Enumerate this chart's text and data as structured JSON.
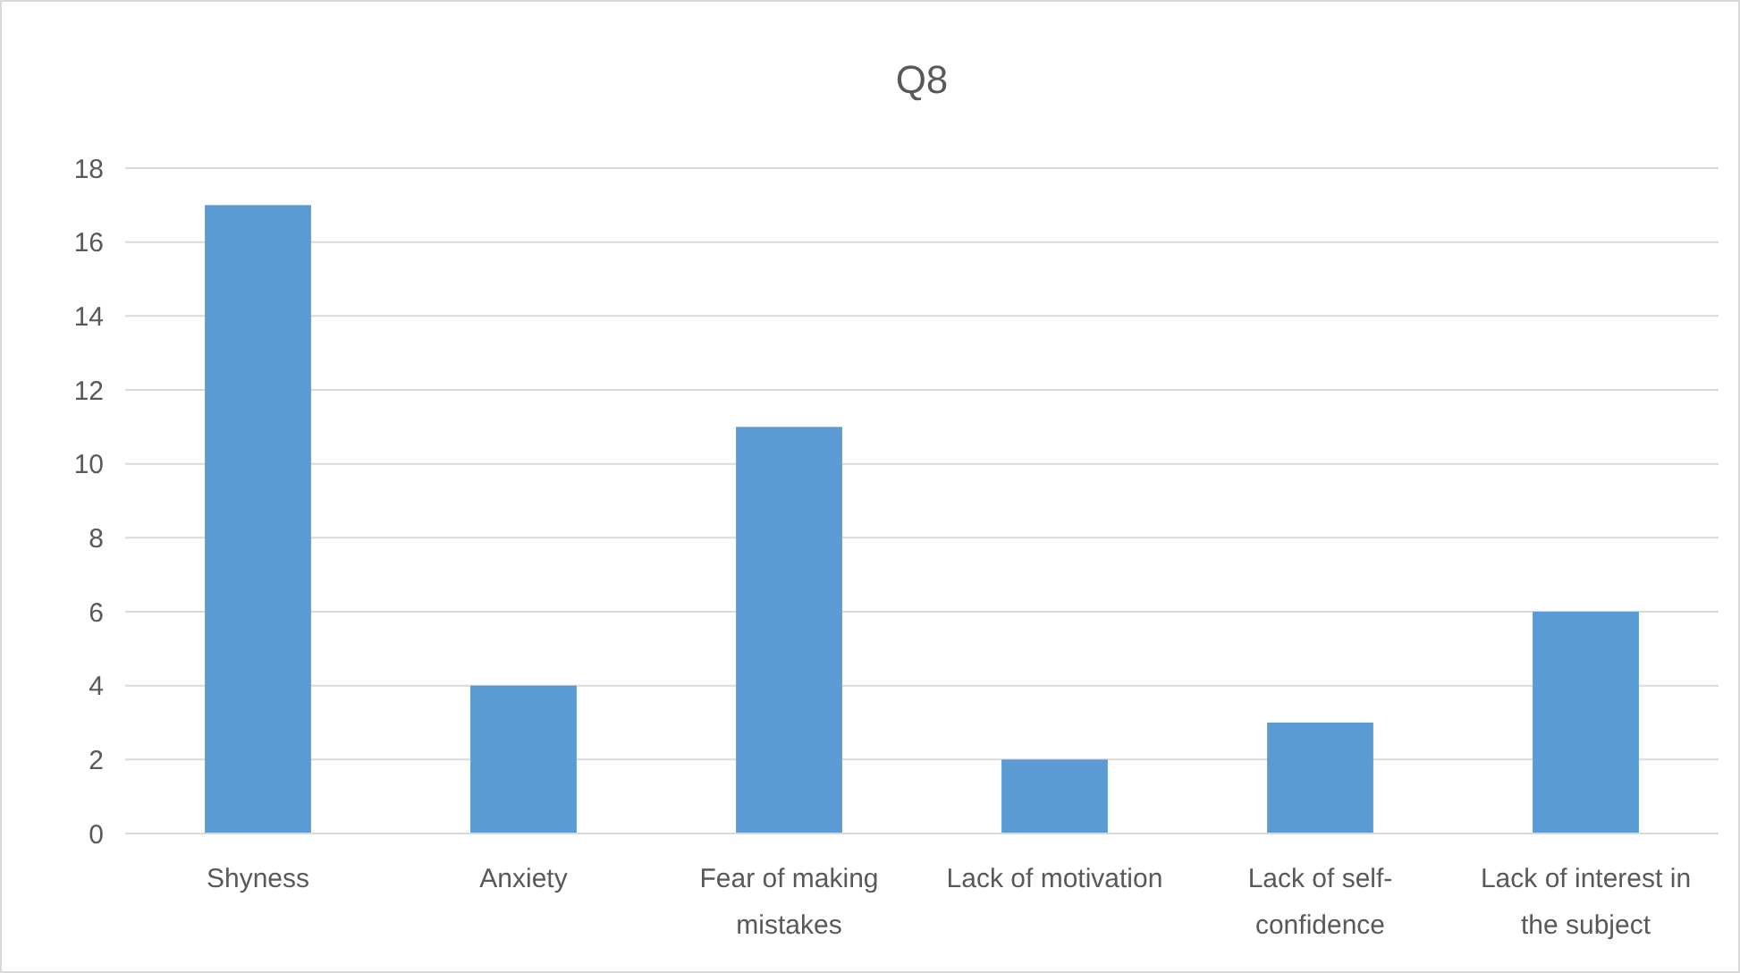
{
  "chart_data": {
    "type": "bar",
    "title": "Q8",
    "categories": [
      "Shyness",
      "Anxiety",
      "Fear of making mistakes",
      "Lack of motivation",
      "Lack of self-confidence",
      "Lack of interest in the subject"
    ],
    "values": [
      17,
      4,
      11,
      2,
      3,
      6
    ],
    "color": "#5b9bd5",
    "ylim": [
      0,
      18
    ],
    "yticks": [
      0,
      2,
      4,
      6,
      8,
      10,
      12,
      14,
      16,
      18
    ],
    "grid": "y"
  }
}
